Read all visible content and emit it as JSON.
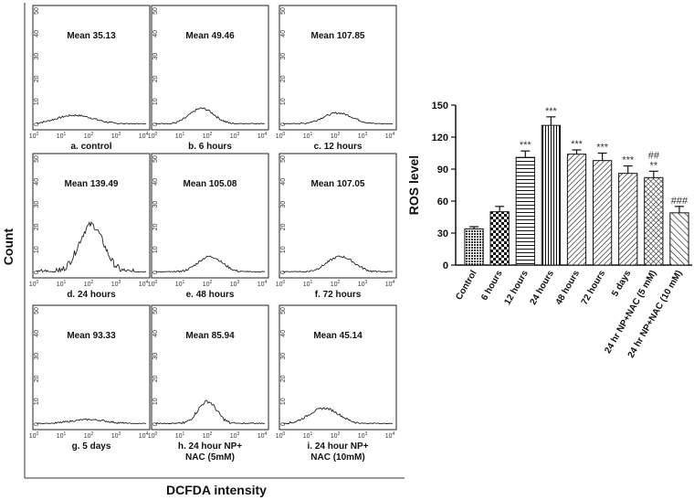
{
  "histograms": {
    "y_axis_title": "Count",
    "x_axis_title": "DCFDA intensity",
    "x_tick_labels": [
      "10",
      "10",
      "10",
      "10",
      "10"
    ],
    "x_tick_exponents": [
      "0",
      "1",
      "2",
      "3",
      "4"
    ],
    "y_tick_labels": [
      "0",
      "10",
      "20",
      "30",
      "40",
      "50"
    ],
    "panels": [
      {
        "mean": "Mean 35.13",
        "caption": [
          "a. control"
        ],
        "peak_log": 1.4,
        "peak": 4,
        "width": 0.7
      },
      {
        "mean": "Mean 49.46",
        "caption": [
          "b. 6 hours"
        ],
        "peak_log": 1.7,
        "peak": 7,
        "width": 0.45
      },
      {
        "mean": "Mean 107.85",
        "caption": [
          "c. 12 hours"
        ],
        "peak_log": 2.0,
        "peak": 5,
        "width": 0.55
      },
      {
        "mean": "Mean 139.49",
        "caption": [
          "d. 24 hours"
        ],
        "peak_log": 2.0,
        "peak": 21,
        "width": 0.45
      },
      {
        "mean": "Mean 105.08",
        "caption": [
          "e. 48 hours"
        ],
        "peak_log": 2.0,
        "peak": 7,
        "width": 0.45
      },
      {
        "mean": "Mean 107.05",
        "caption": [
          "f. 72 hours"
        ],
        "peak_log": 2.1,
        "peak": 7,
        "width": 0.5
      },
      {
        "mean": "Mean 93.33",
        "caption": [
          "g. 5 days"
        ],
        "peak_log": 1.9,
        "peak": 2,
        "width": 0.7
      },
      {
        "mean": "Mean 85.94",
        "caption": [
          "h. 24 hour NP+",
          "NAC (5mM)"
        ],
        "peak_log": 1.9,
        "peak": 10,
        "width": 0.35
      },
      {
        "mean": "Mean 45.14",
        "caption": [
          "i. 24 hour NP+",
          "NAC (10mM)"
        ],
        "peak_log": 1.5,
        "peak": 7,
        "width": 0.55
      }
    ]
  },
  "chart_data": {
    "type": "bar",
    "ylabel": "ROS level",
    "xlabel": "",
    "ylim": [
      0,
      150
    ],
    "yticks": [
      0,
      30,
      60,
      90,
      120,
      150
    ],
    "categories": [
      "Control",
      "6 hours",
      "12 hours",
      "24 hours",
      "48 hours",
      "72 hours",
      "5 days",
      "24 hr NP+NAC (5 mM)",
      "24 hr NP+NAC (10 mM)"
    ],
    "values": [
      34,
      50,
      101,
      131,
      104,
      98,
      86,
      82,
      49
    ],
    "errors": [
      2,
      5,
      6,
      8,
      4,
      7,
      7,
      6,
      6
    ],
    "annotations": [
      "",
      "",
      "***",
      "***",
      "***",
      "***",
      "***",
      "**",
      "###"
    ],
    "annotations2": [
      "",
      "",
      "",
      "",
      "",
      "",
      "",
      "##",
      ""
    ],
    "patterns": [
      "dense",
      "checker",
      "hlines",
      "vlines",
      "diag",
      "diag",
      "diag",
      "crossdiag",
      "backdiag"
    ]
  }
}
